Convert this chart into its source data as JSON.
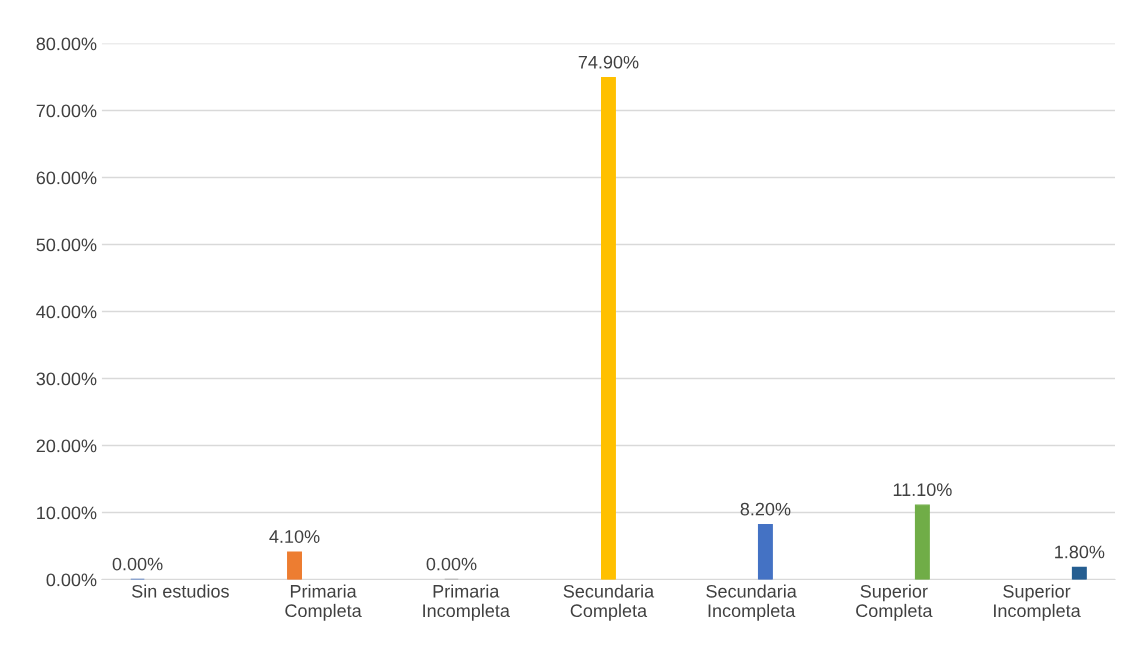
{
  "chart_data": {
    "type": "bar",
    "categories": [
      "Sin estudios",
      "Primaria\nCompleta",
      "Primaria\nIncompleta",
      "Secundaria\nCompleta",
      "Secundaria\nIncompleta",
      "Superior\nCompleta",
      "Superior\nIncompleta"
    ],
    "series": [
      {
        "color": "#4472c4",
        "values": [
          0,
          null,
          null,
          null,
          null,
          null,
          null
        ],
        "value_labels": [
          "0.00%",
          null,
          null,
          null,
          null,
          null,
          null
        ]
      },
      {
        "color": "#ed7d31",
        "values": [
          null,
          4.1,
          null,
          null,
          null,
          null,
          null
        ],
        "value_labels": [
          null,
          "4.10%",
          null,
          null,
          null,
          null,
          null
        ]
      },
      {
        "color": "#a5a5a5",
        "values": [
          null,
          null,
          0,
          null,
          null,
          null,
          null
        ],
        "value_labels": [
          null,
          null,
          "0.00%",
          null,
          null,
          null,
          null
        ]
      },
      {
        "color": "#ffc000",
        "values": [
          null,
          null,
          null,
          74.9,
          null,
          null,
          null
        ],
        "value_labels": [
          null,
          null,
          null,
          "74.90%",
          null,
          null,
          null
        ]
      },
      {
        "color": "#4472c4",
        "values": [
          null,
          null,
          null,
          null,
          8.2,
          null,
          null
        ],
        "value_labels": [
          null,
          null,
          null,
          null,
          "8.20%",
          null,
          null
        ]
      },
      {
        "color": "#70ad47",
        "values": [
          null,
          null,
          null,
          null,
          null,
          11.1,
          null
        ],
        "value_labels": [
          null,
          null,
          null,
          null,
          null,
          "11.10%",
          null
        ]
      },
      {
        "color": "#255e91",
        "values": [
          null,
          null,
          null,
          null,
          null,
          null,
          1.8
        ],
        "value_labels": [
          null,
          null,
          null,
          null,
          null,
          null,
          "1.80%"
        ]
      }
    ],
    "ylim": [
      0,
      80
    ],
    "yticks": [
      {
        "value": 0,
        "label": "0.00%"
      },
      {
        "value": 10,
        "label": "10.00%"
      },
      {
        "value": 20,
        "label": "20.00%"
      },
      {
        "value": 30,
        "label": "30.00%"
      },
      {
        "value": 40,
        "label": "40.00%"
      },
      {
        "value": 50,
        "label": "50.00%"
      },
      {
        "value": 60,
        "label": "60.00%"
      },
      {
        "value": 70,
        "label": "70.00%"
      },
      {
        "value": 80,
        "label": "80.00%"
      }
    ],
    "grid": "y",
    "legend": false
  }
}
